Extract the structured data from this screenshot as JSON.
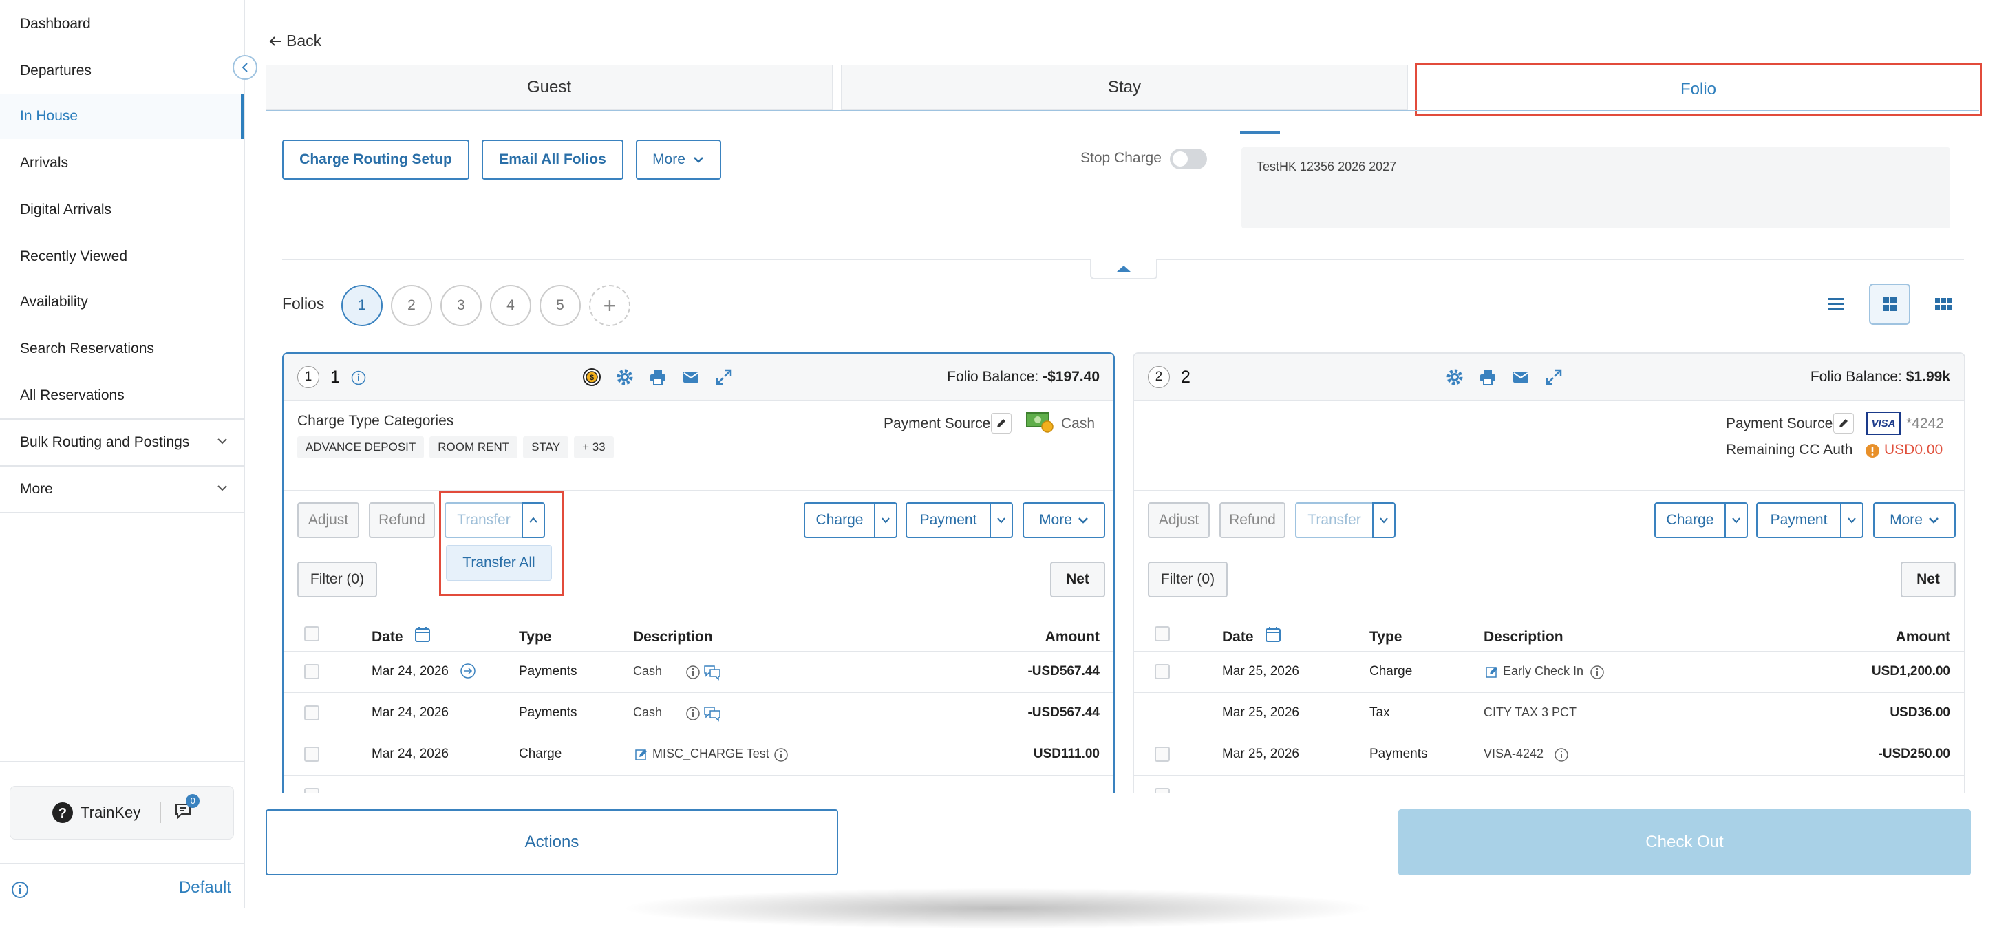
{
  "sidebar": {
    "items": [
      {
        "label": "Dashboard"
      },
      {
        "label": "Departures"
      },
      {
        "label": "In House"
      },
      {
        "label": "Arrivals"
      },
      {
        "label": "Digital Arrivals"
      },
      {
        "label": "Recently Viewed"
      },
      {
        "label": "Availability"
      },
      {
        "label": "Search Reservations"
      },
      {
        "label": "All Reservations"
      },
      {
        "label": "Bulk Routing and Postings"
      },
      {
        "label": "More"
      }
    ],
    "active_item": "In House",
    "trainkey_label": "TrainKey",
    "message_count": "0",
    "default_label": "Default"
  },
  "header": {
    "back_label": "Back",
    "tabs": [
      {
        "label": "Guest"
      },
      {
        "label": "Stay"
      },
      {
        "label": "Folio"
      }
    ],
    "active_tab": "Folio"
  },
  "toolbar": {
    "charge_routing_label": "Charge Routing Setup",
    "email_all_label": "Email All Folios",
    "more_label": "More",
    "stop_charge_label": "Stop Charge",
    "stop_charge_on": false
  },
  "notes": {
    "text": "TestHK 12356 2026 2027"
  },
  "folios": {
    "label": "Folios",
    "numbers": [
      "1",
      "2",
      "3",
      "4",
      "5"
    ],
    "active": "1",
    "add_label": "+"
  },
  "cards": [
    {
      "badge": "1",
      "title": "1",
      "balance_label": "Folio Balance:",
      "balance_value": "-$197.40",
      "categories_label": "Charge Type Categories",
      "categories": [
        "ADVANCE DEPOSIT",
        "ROOM RENT",
        "STAY",
        "+ 33"
      ],
      "payment_source_label": "Payment Source",
      "payment_source_value": "Cash",
      "buttons": {
        "adjust": "Adjust",
        "refund": "Refund",
        "transfer": "Transfer",
        "charge": "Charge",
        "payment": "Payment",
        "more": "More",
        "filter": "Filter (0)",
        "net": "Net"
      },
      "dropdown_item": "Transfer All",
      "columns": {
        "date": "Date",
        "type": "Type",
        "description": "Description",
        "amount": "Amount"
      },
      "rows": [
        {
          "date": "Mar 24, 2026",
          "type": "Payments",
          "description": "Cash",
          "amount": "-USD567.44"
        },
        {
          "date": "Mar 24, 2026",
          "type": "Payments",
          "description": "Cash",
          "amount": "-USD567.44"
        },
        {
          "date": "Mar 24, 2026",
          "type": "Charge",
          "description": "MISC_CHARGE Test",
          "amount": "USD111.00"
        }
      ]
    },
    {
      "badge": "2",
      "title": "2",
      "balance_label": "Folio Balance:",
      "balance_value": "$1.99k",
      "payment_source_label": "Payment Source",
      "card_brand": "VISA",
      "card_last4": "*4242",
      "remaining_auth_label": "Remaining CC Auth",
      "remaining_auth_value": "USD0.00",
      "buttons": {
        "adjust": "Adjust",
        "refund": "Refund",
        "transfer": "Transfer",
        "charge": "Charge",
        "payment": "Payment",
        "more": "More",
        "filter": "Filter (0)",
        "net": "Net"
      },
      "columns": {
        "date": "Date",
        "type": "Type",
        "description": "Description",
        "amount": "Amount"
      },
      "rows": [
        {
          "date": "Mar 25, 2026",
          "type": "Charge",
          "description": "Early Check In",
          "amount": "USD1,200.00"
        },
        {
          "date": "Mar 25, 2026",
          "type": "Tax",
          "description": "CITY TAX 3 PCT",
          "amount": "USD36.00"
        },
        {
          "date": "Mar 25, 2026",
          "type": "Payments",
          "description": "VISA-4242",
          "amount": "-USD250.00"
        }
      ]
    }
  ],
  "footer": {
    "actions_label": "Actions",
    "checkout_label": "Check Out"
  },
  "colors": {
    "accent": "#2e7fbd",
    "highlight": "#e24b3b",
    "checkout_disabled": "#a9d1e7"
  }
}
